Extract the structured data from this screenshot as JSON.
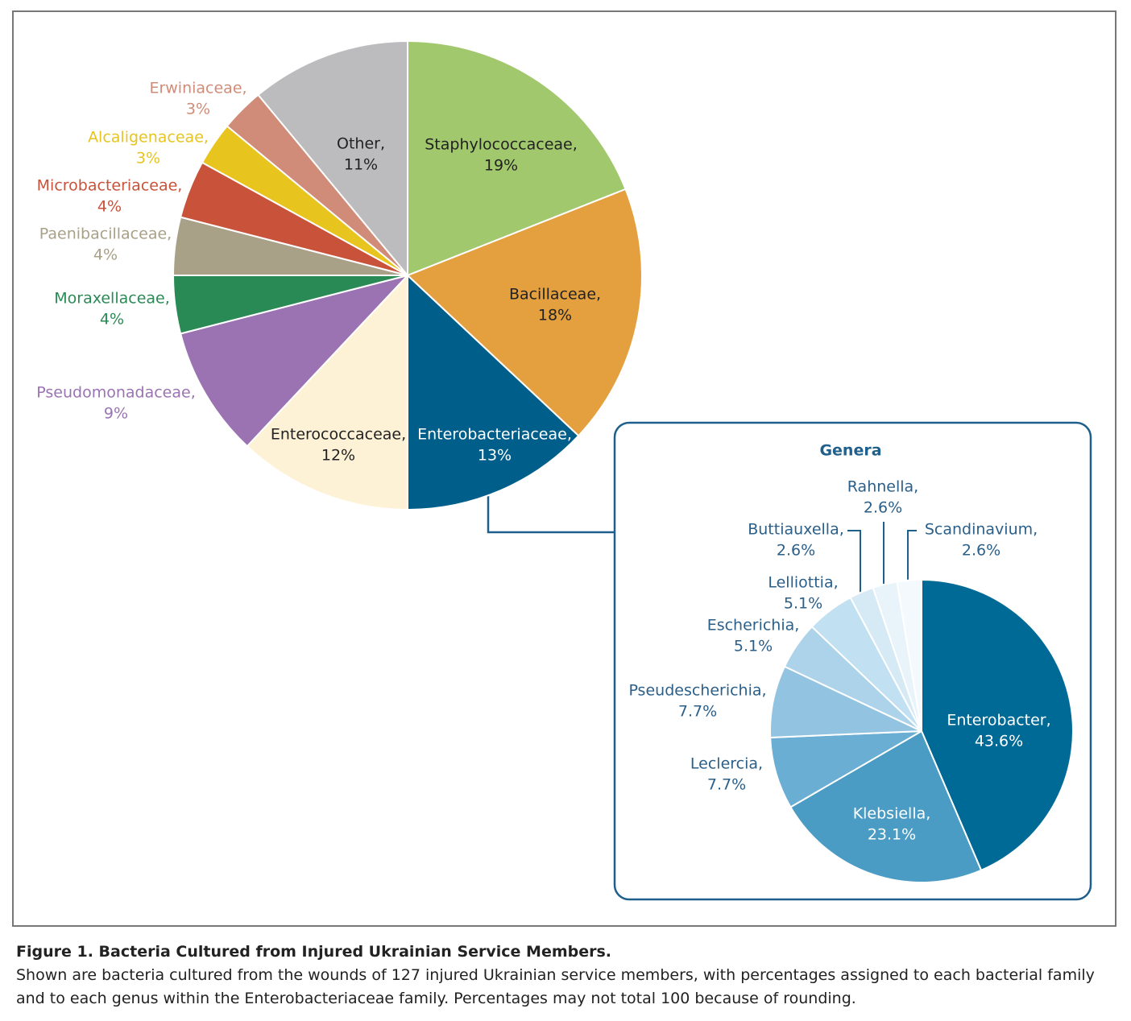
{
  "chart_data": [
    {
      "type": "pie",
      "categories": [
        "Staphylococcaceae,",
        "Bacillaceae,",
        "Enterobacteriaceae,",
        "Enterococcaceae,",
        "Pseudomonadaceae,",
        "Moraxellaceae,",
        "Paenibacillaceae,",
        "Microbacteriaceae,",
        "Alcaligenaceae,",
        "Erwiniaceae,",
        "Other,"
      ],
      "values": [
        19,
        18,
        13,
        12,
        9,
        4,
        4,
        4,
        3,
        3,
        11
      ],
      "value_labels": [
        "19%",
        "18%",
        "13%",
        "12%",
        "9%",
        "4%",
        "4%",
        "4%",
        "3%",
        "3%",
        "11%"
      ],
      "colors": [
        "#a2c86e",
        "#e4a03f",
        "#005e8a",
        "#fef2d6",
        "#9b73b2",
        "#2a8a55",
        "#a9a088",
        "#c8523a",
        "#e8c41f",
        "#d08c78",
        "#bcbcbe"
      ]
    },
    {
      "type": "pie",
      "title": "Genera",
      "categories": [
        "Enterobacter,",
        "Klebsiella,",
        "Leclercia,",
        "Pseudescherichia,",
        "Escherichia,",
        "Lelliottia,",
        "Buttiauxella,",
        "Rahnella,",
        "Scandinavium,"
      ],
      "values": [
        43.6,
        23.1,
        7.7,
        7.7,
        5.1,
        5.1,
        2.6,
        2.6,
        2.6
      ],
      "value_labels": [
        "43.6%",
        "23.1%",
        "7.7%",
        "7.7%",
        "5.1%",
        "5.1%",
        "2.6%",
        "2.6%",
        "2.6%"
      ],
      "colors": [
        "#006a96",
        "#4a9cc4",
        "#6aaed3",
        "#92c4e2",
        "#acd3ea",
        "#c1e0f1",
        "#d6eaf6",
        "#e8f3fa",
        "#f4f9fd"
      ]
    }
  ],
  "caption": {
    "title": "Figure 1. Bacteria Cultured from Injured Ukrainian Service Members.",
    "text": "Shown are bacteria cultured from the wounds of 127 injured Ukrainian service members, with percentages assigned to each bacterial family and to each genus within the Enterobacteriaceae family. Percentages may not total 100 because of rounding."
  }
}
